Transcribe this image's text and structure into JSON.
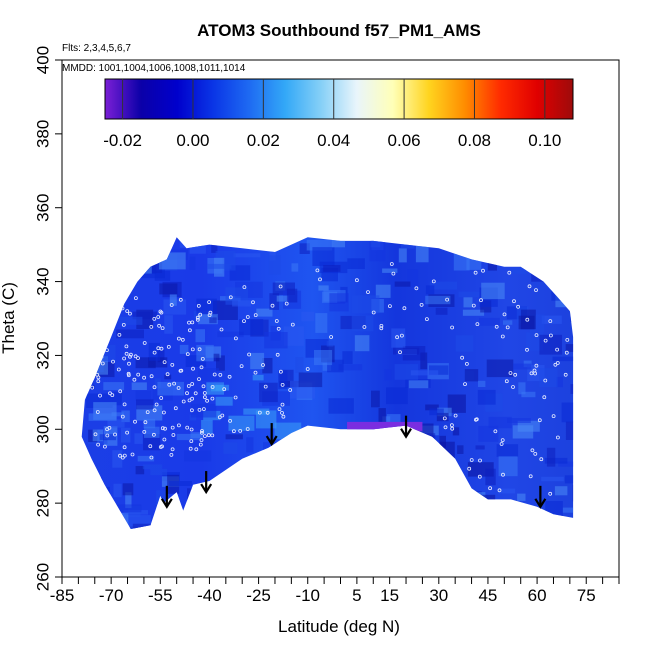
{
  "chart_data": {
    "type": "heatmap",
    "title": "ATOM3 Southbound f57_PM1_AMS",
    "annotations": {
      "flights": "Flts: 2,3,4,5,6,7",
      "mmdd": "MMDD: 1001,1004,1006,1008,1011,1014"
    },
    "xlabel": "Latitude (deg N)",
    "ylabel": "Theta (C)",
    "xlim": [
      -85,
      85
    ],
    "ylim": [
      260,
      400
    ],
    "x_ticks": [
      -85,
      -70,
      -55,
      -40,
      -25,
      -10,
      5,
      15,
      30,
      45,
      60,
      75
    ],
    "x_tick_labels": [
      "-85",
      "-70",
      "-55",
      "-40",
      "-25",
      "-10",
      "5",
      "15",
      "30",
      "45",
      "60",
      "75"
    ],
    "y_ticks": [
      260,
      280,
      300,
      320,
      340,
      360,
      380,
      400
    ],
    "y_tick_labels": [
      "260",
      "280",
      "300",
      "320",
      "340",
      "360",
      "380",
      "400"
    ],
    "colorbar": {
      "range": [
        -0.025,
        0.108
      ],
      "ticks": [
        -0.02,
        0.0,
        0.02,
        0.04,
        0.06,
        0.08,
        0.1
      ],
      "tick_labels": [
        "-0.02",
        "0.00",
        "0.02",
        "0.04",
        "0.06",
        "0.08",
        "0.10"
      ],
      "colors": [
        "#7b1fd6",
        "#0b00a8",
        "#0000cc",
        "#0a35e6",
        "#1e6af2",
        "#33a8f7",
        "#86d0f7",
        "#e9f5fb",
        "#ffffb8",
        "#ffd41f",
        "#ff8c00",
        "#ff2a00",
        "#e00000",
        "#9e0b0b"
      ]
    },
    "field_envelope": {
      "upper": [
        [
          -78,
          308
        ],
        [
          -75,
          314
        ],
        [
          -70,
          325
        ],
        [
          -66,
          334
        ],
        [
          -62,
          340
        ],
        [
          -58,
          344
        ],
        [
          -53,
          346
        ],
        [
          -50,
          352
        ],
        [
          -47,
          349
        ],
        [
          -40,
          350
        ],
        [
          -30,
          349
        ],
        [
          -20,
          348
        ],
        [
          -10,
          352
        ],
        [
          0,
          351
        ],
        [
          10,
          351
        ],
        [
          20,
          350
        ],
        [
          30,
          349
        ],
        [
          40,
          346
        ],
        [
          50,
          344
        ],
        [
          55,
          344
        ],
        [
          62,
          340
        ],
        [
          66,
          336
        ],
        [
          70,
          332
        ],
        [
          71,
          325
        ]
      ],
      "lower": [
        [
          71,
          276
        ],
        [
          65,
          277
        ],
        [
          60,
          279
        ],
        [
          52,
          281
        ],
        [
          45,
          281
        ],
        [
          40,
          284
        ],
        [
          35,
          292
        ],
        [
          28,
          298
        ],
        [
          20,
          301
        ],
        [
          10,
          300
        ],
        [
          0,
          300
        ],
        [
          -10,
          301
        ],
        [
          -15,
          299
        ],
        [
          -22,
          295
        ],
        [
          -30,
          292
        ],
        [
          -40,
          286
        ],
        [
          -45,
          285
        ],
        [
          -48,
          278
        ],
        [
          -50,
          283
        ],
        [
          -54,
          280
        ],
        [
          -55,
          282
        ],
        [
          -58,
          274
        ],
        [
          -64,
          273
        ],
        [
          -68,
          279
        ],
        [
          -72,
          285
        ],
        [
          -76,
          292
        ],
        [
          -79,
          298
        ]
      ]
    },
    "low_value_band": {
      "x": [
        2,
        25
      ],
      "theta": [
        300,
        302
      ],
      "value": -0.02
    },
    "arrows": [
      {
        "lat": -53,
        "theta": 279
      },
      {
        "lat": -41,
        "theta": 283
      },
      {
        "lat": -21,
        "theta": 296
      },
      {
        "lat": 20,
        "theta": 298
      },
      {
        "lat": 61,
        "theta": 279
      }
    ],
    "grid": false,
    "legend": "colorbar top-inside"
  }
}
